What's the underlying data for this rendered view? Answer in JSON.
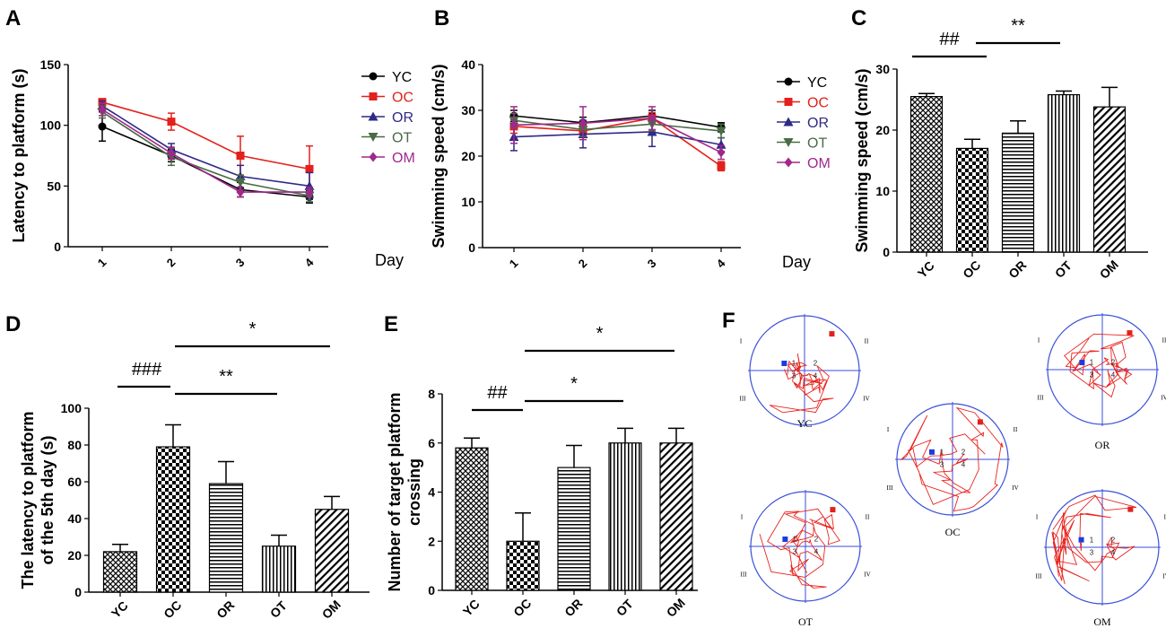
{
  "palette": {
    "YC": "#000000",
    "OC": "#e3201b",
    "OR": "#2e2a86",
    "OT": "#4a6b46",
    "OM": "#a0288c",
    "track": "#e8231e",
    "circle": "#3a4fd8",
    "blue_marker": "#1d3be0",
    "red_marker": "#e3201b"
  },
  "chart_data": [
    {
      "panel": "A",
      "type": "line",
      "x": [
        1,
        2,
        3,
        4
      ],
      "xticks": [
        "1",
        "2",
        "3",
        "4"
      ],
      "xlabel": "Day",
      "ylabel": "Latency to platform (s)",
      "ylim": [
        0,
        150
      ],
      "yticks": [
        "0",
        "50",
        "100",
        "150"
      ],
      "series": [
        {
          "name": "YC",
          "marker": "circle",
          "values": [
            99,
            75,
            47,
            41
          ],
          "err": [
            12,
            5,
            6,
            5
          ]
        },
        {
          "name": "OC",
          "marker": "square",
          "values": [
            119,
            103,
            75,
            64
          ],
          "err": [
            3,
            7,
            16,
            19
          ]
        },
        {
          "name": "OR",
          "marker": "triangle",
          "values": [
            116,
            80,
            58,
            50
          ],
          "err": [
            4,
            5,
            9,
            11
          ]
        },
        {
          "name": "OT",
          "marker": "triangle-down",
          "values": [
            111,
            74,
            53,
            42
          ],
          "err": [
            5,
            7,
            6,
            5
          ]
        },
        {
          "name": "OM",
          "marker": "diamond",
          "values": [
            113,
            77,
            45,
            45
          ],
          "err": [
            5,
            5,
            4,
            4
          ]
        }
      ]
    },
    {
      "panel": "B",
      "type": "line",
      "x": [
        1,
        2,
        3,
        4
      ],
      "xticks": [
        "1",
        "2",
        "3",
        "4"
      ],
      "xlabel": "Day",
      "ylabel": "Swimming speed (cm/s)",
      "ylim": [
        0,
        40
      ],
      "yticks": [
        "0",
        "10",
        "20",
        "30",
        "40"
      ],
      "series": [
        {
          "name": "YC",
          "marker": "circle",
          "values": [
            28.8,
            27.3,
            28.8,
            26.3
          ],
          "err": [
            1.2,
            1.2,
            1.2,
            1.0
          ]
        },
        {
          "name": "OC",
          "marker": "square",
          "values": [
            26.5,
            25.5,
            28.3,
            17.8
          ],
          "err": [
            1.5,
            1.2,
            1.2,
            1.0
          ]
        },
        {
          "name": "OR",
          "marker": "triangle",
          "values": [
            24.2,
            24.8,
            25.3,
            22.5
          ],
          "err": [
            3.0,
            3.0,
            3.2,
            1.5
          ]
        },
        {
          "name": "OT",
          "marker": "triangle-down",
          "values": [
            27.8,
            25.8,
            27.0,
            25.5
          ],
          "err": [
            1.5,
            1.5,
            1.5,
            1.5
          ]
        },
        {
          "name": "OM",
          "marker": "diamond",
          "values": [
            26.8,
            27.2,
            28.3,
            20.8
          ],
          "err": [
            4.0,
            3.6,
            2.5,
            1.5
          ]
        }
      ]
    },
    {
      "panel": "C",
      "type": "bar",
      "categories": [
        "YC",
        "OC",
        "OR",
        "OT",
        "OM"
      ],
      "values": [
        25.5,
        17.0,
        19.5,
        25.8,
        23.8
      ],
      "err": [
        0.5,
        1.5,
        2.0,
        0.6,
        3.2
      ],
      "patterns": [
        "crosshatch",
        "checker",
        "horizontal",
        "vertical",
        "diagonal"
      ],
      "ylabel": "Swimming speed (cm/s)",
      "ylim": [
        0,
        30
      ],
      "yticks": [
        "0",
        "10",
        "20",
        "30"
      ],
      "annotations": [
        {
          "text": "##",
          "from": "YC",
          "to": "OC"
        },
        {
          "text": "**",
          "from": "OC",
          "to": "OT"
        }
      ]
    },
    {
      "panel": "D",
      "type": "bar",
      "categories": [
        "YC",
        "OC",
        "OR",
        "OT",
        "OM"
      ],
      "values": [
        22,
        79,
        59,
        25,
        45
      ],
      "err": [
        4,
        12,
        12,
        6,
        7
      ],
      "patterns": [
        "crosshatch",
        "checker",
        "horizontal",
        "vertical",
        "diagonal"
      ],
      "ylabel_lines": [
        "The latency to platform",
        "of the 5th day (s)"
      ],
      "ylim": [
        0,
        100
      ],
      "yticks": [
        "0",
        "20",
        "40",
        "60",
        "80",
        "100"
      ],
      "annotations": [
        {
          "text": "###",
          "from": "YC",
          "to": "OC"
        },
        {
          "text": "**",
          "from": "OC",
          "to": "OT"
        },
        {
          "text": "*",
          "from": "OC",
          "to": "OM"
        }
      ]
    },
    {
      "panel": "E",
      "type": "bar",
      "categories": [
        "YC",
        "OC",
        "OR",
        "OT",
        "OM"
      ],
      "values": [
        5.8,
        2.0,
        5.0,
        6.0,
        6.0
      ],
      "err": [
        0.4,
        1.15,
        0.9,
        0.6,
        0.6
      ],
      "patterns": [
        "crosshatch",
        "checker",
        "horizontal",
        "vertical",
        "diagonal"
      ],
      "ylabel_lines": [
        "Number of target platform",
        "crossing"
      ],
      "ylim": [
        0,
        8
      ],
      "yticks": [
        "0",
        "2",
        "4",
        "6",
        "8"
      ],
      "annotations": [
        {
          "text": "##",
          "from": "YC",
          "to": "OC"
        },
        {
          "text": "*",
          "from": "OC",
          "to": "OT"
        },
        {
          "text": "*",
          "from": "OC",
          "to": "OM"
        }
      ]
    }
  ],
  "panels": {
    "A": {
      "letter": "A"
    },
    "B": {
      "letter": "B"
    },
    "C": {
      "letter": "C"
    },
    "D": {
      "letter": "D"
    },
    "E": {
      "letter": "E"
    },
    "F": {
      "letter": "F"
    }
  },
  "swim_paths": {
    "quadrants": [
      "I",
      "II",
      "III",
      "IV"
    ],
    "groups": [
      {
        "name": "YC",
        "digits": [
          "1",
          "2",
          "3",
          "4"
        ]
      },
      {
        "name": "OC",
        "digits": [
          "1",
          "2",
          "3",
          "4"
        ]
      },
      {
        "name": "OR",
        "digits": [
          "1",
          "2",
          "3",
          "4"
        ]
      },
      {
        "name": "OT",
        "digits": [
          "1",
          "2",
          "3",
          "4"
        ]
      },
      {
        "name": "OM",
        "digits": [
          "1",
          "2",
          "3",
          "4"
        ]
      }
    ]
  }
}
